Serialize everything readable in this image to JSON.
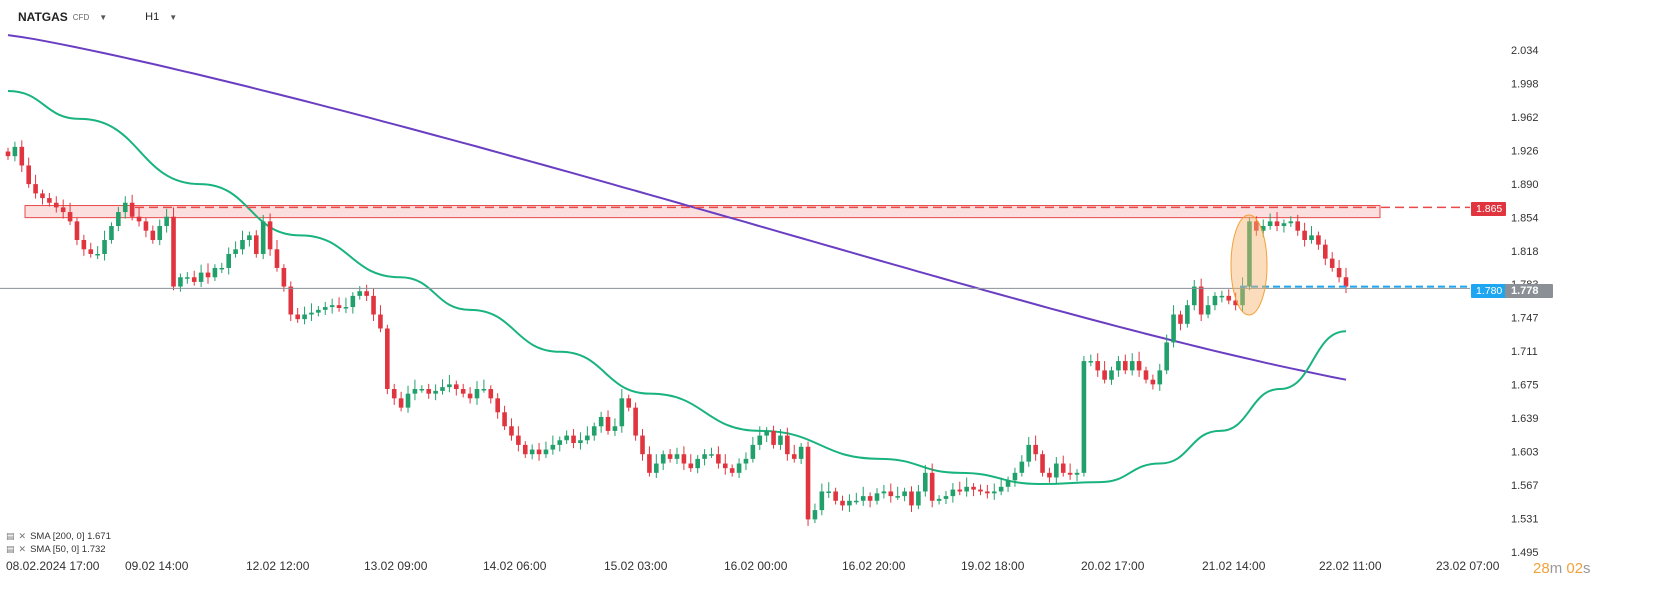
{
  "header": {
    "symbol": "NATGAS",
    "instrument_type": "CFD",
    "timeframe": "H1"
  },
  "indicators": [
    {
      "label": "SMA [200, 0] 1.671",
      "color": "#6a3ec2"
    },
    {
      "label": "SMA [50, 0] 1.732",
      "color": "#19b37e"
    }
  ],
  "countdown": {
    "minutes": "28",
    "m": "m",
    "seconds": "02",
    "s": "s"
  },
  "price_labels": {
    "resistance": "1.865",
    "support": "1.780",
    "current": "1.778"
  },
  "colors": {
    "up": "#22a06b",
    "down": "#e0353f",
    "sma200": "#6a3ec2",
    "sma50": "#19b37e",
    "resistance": "#e84a4a",
    "support": "#1ea7f0"
  },
  "chart_data": {
    "type": "candlestick",
    "title": "",
    "y_ticks": [
      "2.034",
      "1.998",
      "1.962",
      "1.926",
      "1.890",
      "1.854",
      "1.818",
      "1.783",
      "1.747",
      "1.711",
      "1.675",
      "1.639",
      "1.603",
      "1.567",
      "1.531",
      "1.495"
    ],
    "x_ticks": [
      "08.02.2024 17:00",
      "09.02 14:00",
      "12.02 12:00",
      "13.02 09:00",
      "14.02 06:00",
      "15.02 03:00",
      "16.02 00:00",
      "16.02 20:00",
      "19.02 18:00",
      "20.02 17:00",
      "21.02 14:00",
      "22.02 11:00",
      "23.02 07:00"
    ],
    "ylim": [
      1.495,
      2.052
    ],
    "horizontal_lines": [
      {
        "name": "resistance",
        "value": 1.865,
        "style": "dashed"
      },
      {
        "name": "support",
        "value": 1.78,
        "style": "dashed"
      },
      {
        "name": "last price",
        "value": 1.778,
        "style": "solid"
      }
    ],
    "resistance_zone": [
      1.854,
      1.867
    ],
    "candles_close": [
      1.92,
      1.93,
      1.91,
      1.89,
      1.88,
      1.875,
      1.87,
      1.865,
      1.86,
      1.85,
      1.83,
      1.82,
      1.815,
      1.815,
      1.83,
      1.845,
      1.86,
      1.87,
      1.855,
      1.85,
      1.84,
      1.83,
      1.845,
      1.855,
      1.78,
      1.79,
      1.79,
      1.785,
      1.795,
      1.79,
      1.8,
      1.8,
      1.815,
      1.82,
      1.83,
      1.835,
      1.815,
      1.85,
      1.82,
      1.8,
      1.78,
      1.75,
      1.745,
      1.75,
      1.752,
      1.755,
      1.758,
      1.76,
      1.757,
      1.758,
      1.77,
      1.775,
      1.77,
      1.75,
      1.735,
      1.67,
      1.66,
      1.65,
      1.665,
      1.67,
      1.67,
      1.665,
      1.668,
      1.672,
      1.675,
      1.67,
      1.665,
      1.66,
      1.67,
      1.67,
      1.66,
      1.645,
      1.63,
      1.62,
      1.61,
      1.6,
      1.605,
      1.6,
      1.605,
      1.61,
      1.615,
      1.62,
      1.612,
      1.615,
      1.62,
      1.63,
      1.64,
      1.625,
      1.63,
      1.66,
      1.65,
      1.62,
      1.6,
      1.58,
      1.59,
      1.6,
      1.595,
      1.6,
      1.59,
      1.585,
      1.595,
      1.6,
      1.6,
      1.59,
      1.585,
      1.58,
      1.59,
      1.595,
      1.61,
      1.62,
      1.625,
      1.61,
      1.62,
      1.6,
      1.595,
      1.608,
      1.53,
      1.54,
      1.56,
      1.56,
      1.55,
      1.545,
      1.55,
      1.55,
      1.555,
      1.55,
      1.558,
      1.56,
      1.555,
      1.555,
      1.56,
      1.545,
      1.56,
      1.58,
      1.55,
      1.552,
      1.555,
      1.562,
      1.56,
      1.565,
      1.562,
      1.56,
      1.558,
      1.56,
      1.565,
      1.572,
      1.58,
      1.592,
      1.61,
      1.6,
      1.58,
      1.575,
      1.59,
      1.58,
      1.578,
      1.58,
      1.7,
      1.7,
      1.69,
      1.68,
      1.69,
      1.7,
      1.69,
      1.7,
      1.69,
      1.68,
      1.675,
      1.69,
      1.72,
      1.75,
      1.74,
      1.76,
      1.78,
      1.75,
      1.76,
      1.77,
      1.77,
      1.765,
      1.76,
      1.78,
      1.85,
      1.84,
      1.845,
      1.85,
      1.845,
      1.848,
      1.85,
      1.84,
      1.83,
      1.835,
      1.825,
      1.81,
      1.8,
      1.79,
      1.78
    ]
  }
}
